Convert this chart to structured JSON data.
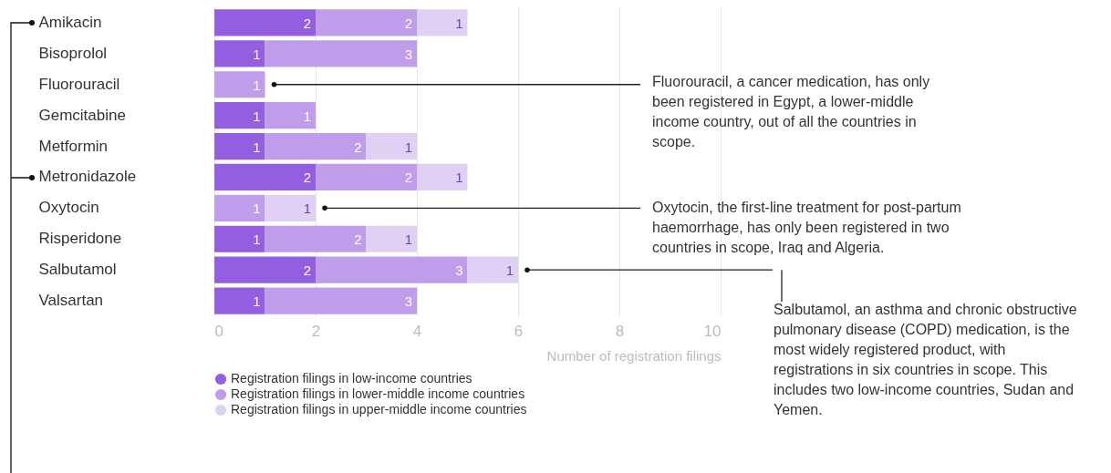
{
  "chart_data": {
    "type": "bar",
    "orientation": "horizontal",
    "stacked": true,
    "data_labels": true,
    "categories": [
      "Amikacin",
      "Bisoprolol",
      "Fluorouracil",
      "Gemcitabine",
      "Metformin",
      "Metronidazole",
      "Oxytocin",
      "Risperidone",
      "Salbutamol",
      "Valsartan"
    ],
    "series": [
      {
        "name": "Registration filings in low-income countries",
        "color": "#935ee0",
        "values": [
          2,
          1,
          null,
          1,
          1,
          2,
          null,
          1,
          2,
          1
        ]
      },
      {
        "name": "Registration filings in lower-middle income countries",
        "color": "#bf9deb",
        "values": [
          2,
          3,
          1,
          1,
          2,
          2,
          1,
          2,
          3,
          3
        ]
      },
      {
        "name": "Registration filings in upper-middle income countries",
        "color": "#e0d0f4",
        "values": [
          1,
          null,
          null,
          null,
          1,
          1,
          1,
          1,
          1,
          null
        ]
      }
    ],
    "xlim": [
      0,
      10
    ],
    "xticks": [
      0,
      2,
      4,
      6,
      8,
      10
    ],
    "xlabel": "Number of registration filings",
    "grid": "x",
    "legend": "bottom left",
    "annotations": [
      "Fluorouracil, a cancer medication, has only been registered in Egypt, a lower-middle income country, out of all the countries in scope.",
      "Oxytocin, the first-line treatment for post-partum haemorrhage, has only been registered in two countries in scope, Iraq and Algeria.",
      "Salbutamol, an asthma and chronic obstructive pulmonary disease (COPD) medication, is the most widely registered product, with registrations in six countries in scope. This includes two low-income countries, Sudan and Yemen."
    ]
  }
}
